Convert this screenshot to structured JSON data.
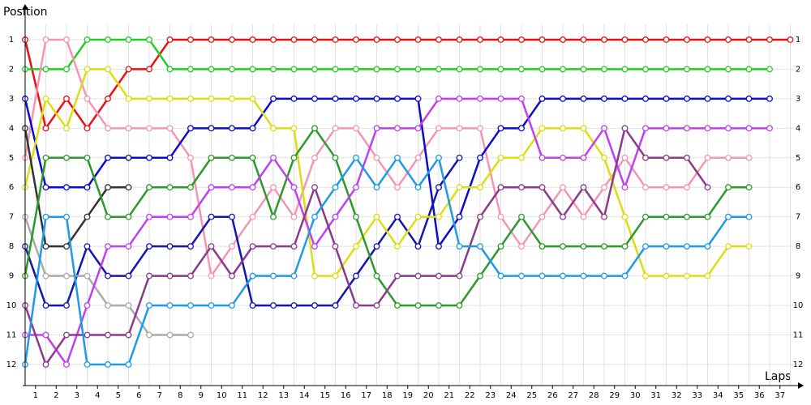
{
  "chart_data": {
    "type": "line",
    "y_label": "Position",
    "x_label": "Laps",
    "x": [
      0,
      1,
      2,
      3,
      4,
      5,
      6,
      7,
      8,
      9,
      10,
      11,
      12,
      13,
      14,
      15,
      16,
      17,
      18,
      19,
      20,
      21,
      22,
      23,
      24,
      25,
      26,
      27,
      28,
      29,
      30,
      31,
      32,
      33,
      34,
      35,
      36,
      37
    ],
    "xlim": [
      0,
      37
    ],
    "xticks": [
      {
        "value": 0.5,
        "label": "1"
      },
      {
        "value": 1.5,
        "label": "2"
      },
      {
        "value": 2.5,
        "label": "3"
      },
      {
        "value": 3.5,
        "label": "4"
      },
      {
        "value": 4.5,
        "label": "5"
      },
      {
        "value": 5.5,
        "label": "6"
      },
      {
        "value": 6.5,
        "label": "7"
      },
      {
        "value": 7.5,
        "label": "8"
      },
      {
        "value": 8.5,
        "label": "9"
      },
      {
        "value": 9.5,
        "label": "10"
      },
      {
        "value": 10.5,
        "label": "11"
      },
      {
        "value": 11.5,
        "label": "12"
      },
      {
        "value": 12.5,
        "label": "13"
      },
      {
        "value": 13.5,
        "label": "14"
      },
      {
        "value": 14.5,
        "label": "15"
      },
      {
        "value": 15.5,
        "label": "16"
      },
      {
        "value": 16.5,
        "label": "17"
      },
      {
        "value": 17.5,
        "label": "18"
      },
      {
        "value": 18.5,
        "label": "19"
      },
      {
        "value": 19.5,
        "label": "20"
      },
      {
        "value": 20.5,
        "label": "21"
      },
      {
        "value": 21.5,
        "label": "22"
      },
      {
        "value": 22.5,
        "label": "23"
      },
      {
        "value": 23.5,
        "label": "24"
      },
      {
        "value": 24.5,
        "label": "25"
      },
      {
        "value": 25.5,
        "label": "26"
      },
      {
        "value": 26.5,
        "label": "27"
      },
      {
        "value": 27.5,
        "label": "28"
      },
      {
        "value": 28.5,
        "label": "29"
      },
      {
        "value": 29.5,
        "label": "30"
      },
      {
        "value": 30.5,
        "label": "31"
      },
      {
        "value": 31.5,
        "label": "32"
      },
      {
        "value": 32.5,
        "label": "33"
      },
      {
        "value": 33.5,
        "label": "34"
      },
      {
        "value": 34.5,
        "label": "35"
      },
      {
        "value": 35.5,
        "label": "36"
      },
      {
        "value": 36.5,
        "label": "37"
      }
    ],
    "ylim": [
      12.7,
      0
    ],
    "yticks": [
      1,
      2,
      3,
      4,
      5,
      6,
      7,
      8,
      9,
      10,
      11,
      12
    ],
    "grid": true,
    "series": [
      {
        "color": "#e81010",
        "values": [
          1,
          4,
          3,
          4,
          3,
          2,
          2,
          1,
          1,
          1,
          1,
          1,
          1,
          1,
          1,
          1,
          1,
          1,
          1,
          1,
          1,
          1,
          1,
          1,
          1,
          1,
          1,
          1,
          1,
          1,
          1,
          1,
          1,
          1,
          1,
          1,
          1,
          1
        ]
      },
      {
        "color": "#22cc22",
        "values": [
          2,
          2,
          2,
          1,
          1,
          1,
          1,
          2,
          2,
          2,
          2,
          2,
          2,
          2,
          2,
          2,
          2,
          2,
          2,
          2,
          2,
          2,
          2,
          2,
          2,
          2,
          2,
          2,
          2,
          2,
          2,
          2,
          2,
          2,
          2,
          2,
          2,
          null
        ]
      },
      {
        "color": "#f595b5",
        "values": [
          5,
          1,
          1,
          3,
          4,
          4,
          4,
          4,
          5,
          9,
          8,
          7,
          6,
          7,
          5,
          4,
          4,
          5,
          6,
          5,
          4,
          4,
          4,
          7,
          8,
          7,
          6,
          7,
          6,
          5,
          6,
          6,
          6,
          5,
          5,
          5,
          null,
          null
        ]
      },
      {
        "color": "#0a0ad0",
        "values": [
          3,
          6,
          6,
          6,
          5,
          5,
          5,
          5,
          4,
          4,
          4,
          4,
          3,
          3,
          3,
          3,
          3,
          3,
          3,
          3,
          8,
          7,
          5,
          4,
          4,
          3,
          3,
          3,
          3,
          3,
          3,
          3,
          3,
          3,
          3,
          3,
          3,
          null
        ]
      },
      {
        "color": "#1515b0",
        "values": [
          8,
          10,
          10,
          8,
          9,
          9,
          8,
          8,
          8,
          7,
          7,
          10,
          10,
          10,
          10,
          10,
          9,
          8,
          7,
          8,
          6,
          5,
          null,
          null,
          null,
          null,
          null,
          null,
          null,
          null,
          null,
          null,
          null,
          null,
          null,
          null,
          null,
          null
        ]
      },
      {
        "color": "#dddd10",
        "values": [
          6,
          3,
          4,
          2,
          2,
          3,
          3,
          3,
          3,
          3,
          3,
          3,
          4,
          4,
          9,
          9,
          8,
          7,
          8,
          7,
          7,
          6,
          6,
          5,
          5,
          4,
          4,
          4,
          5,
          7,
          9,
          9,
          9,
          9,
          8,
          8,
          null,
          null
        ]
      },
      {
        "color": "#333333",
        "values": [
          4,
          8,
          8,
          7,
          6,
          6,
          null,
          null,
          null,
          null,
          null,
          null,
          null,
          null,
          null,
          null,
          null,
          null,
          null,
          null,
          null,
          null,
          null,
          null,
          null,
          null,
          null,
          null,
          null,
          null,
          null,
          null,
          null,
          null,
          null,
          null,
          null,
          null
        ]
      },
      {
        "color": "#aaaaaa",
        "values": [
          7,
          9,
          9,
          9,
          10,
          10,
          11,
          11,
          11,
          null,
          null,
          null,
          null,
          null,
          null,
          null,
          null,
          null,
          null,
          null,
          null,
          null,
          null,
          null,
          null,
          null,
          null,
          null,
          null,
          null,
          null,
          null,
          null,
          null,
          null,
          null,
          null,
          null
        ]
      },
      {
        "color": "#2b9a2b",
        "values": [
          9,
          5,
          5,
          5,
          7,
          7,
          6,
          6,
          6,
          5,
          5,
          5,
          7,
          5,
          4,
          5,
          7,
          9,
          10,
          10,
          10,
          10,
          9,
          8,
          7,
          8,
          8,
          8,
          8,
          8,
          7,
          7,
          7,
          7,
          6,
          6,
          null,
          null
        ]
      },
      {
        "color": "#c040f0",
        "values": [
          11,
          11,
          12,
          10,
          8,
          8,
          7,
          7,
          7,
          6,
          6,
          6,
          5,
          6,
          8,
          7,
          6,
          4,
          4,
          4,
          3,
          3,
          3,
          3,
          3,
          5,
          5,
          5,
          4,
          6,
          4,
          4,
          4,
          4,
          4,
          4,
          4,
          null
        ]
      },
      {
        "color": "#8b3a8b",
        "values": [
          10,
          12,
          11,
          11,
          11,
          11,
          9,
          9,
          9,
          8,
          9,
          8,
          8,
          8,
          6,
          8,
          10,
          10,
          9,
          9,
          9,
          9,
          7,
          6,
          6,
          6,
          7,
          6,
          7,
          4,
          5,
          5,
          5,
          6,
          null,
          null,
          null,
          null
        ]
      },
      {
        "color": "#1e9be8",
        "values": [
          12,
          7,
          7,
          12,
          12,
          12,
          10,
          10,
          10,
          10,
          10,
          9,
          9,
          9,
          7,
          6,
          5,
          6,
          5,
          6,
          5,
          8,
          8,
          9,
          9,
          9,
          9,
          9,
          9,
          9,
          8,
          8,
          8,
          8,
          7,
          7,
          null,
          null
        ]
      }
    ]
  }
}
